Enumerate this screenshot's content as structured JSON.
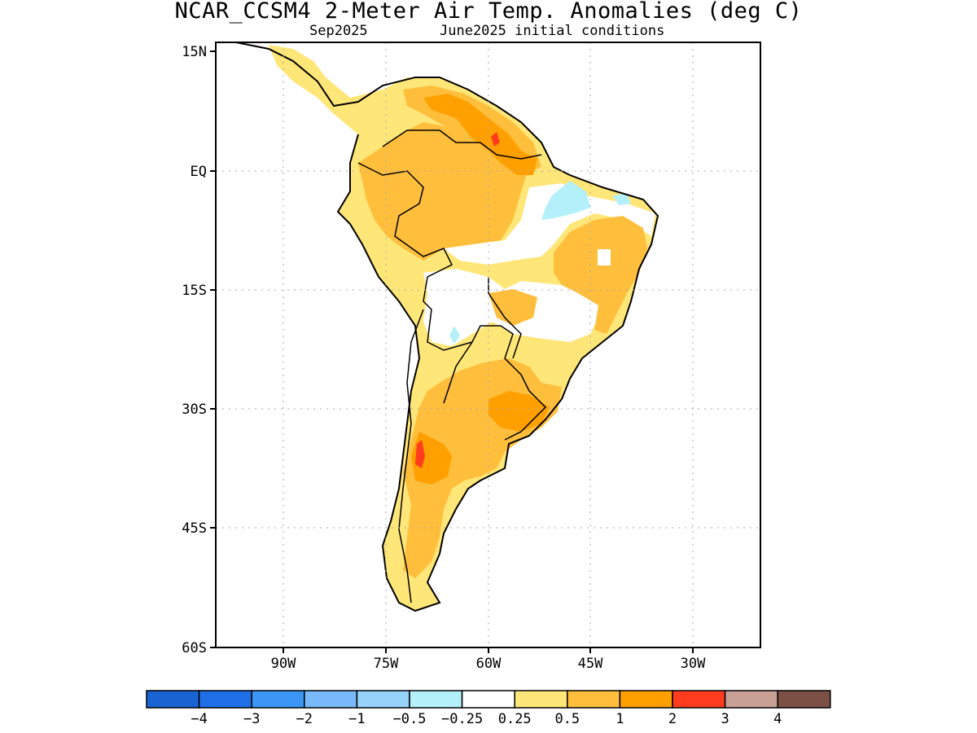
{
  "title": "NCAR_CCSM4 2-Meter Air Temp. Anomalies (deg C)",
  "subtitle_left": "Sep2025",
  "subtitle_right": "June2025 initial conditions",
  "map": {
    "lat_ticks": [
      "15N",
      "EQ",
      "15S",
      "30S",
      "45S",
      "60S"
    ],
    "lon_ticks": [
      "90W",
      "75W",
      "60W",
      "45W",
      "30W"
    ],
    "lat_range": [
      -60,
      15
    ],
    "lon_range": [
      -100,
      -20
    ],
    "grid": true
  },
  "colorbar": {
    "colors": [
      "#1964d2",
      "#1e6ee6",
      "#3c96f5",
      "#78b9fa",
      "#96d2fa",
      "#b4f0fa",
      "#ffffff",
      "#ffe678",
      "#ffbe3c",
      "#ffa000",
      "#ff3c1e",
      "#c8a096",
      "#7d5046"
    ],
    "labels": [
      "−4",
      "−3",
      "−2",
      "−1",
      "−0.5",
      "−0.25",
      "0.25",
      "0.5",
      "1",
      "2",
      "3",
      "4"
    ]
  }
}
